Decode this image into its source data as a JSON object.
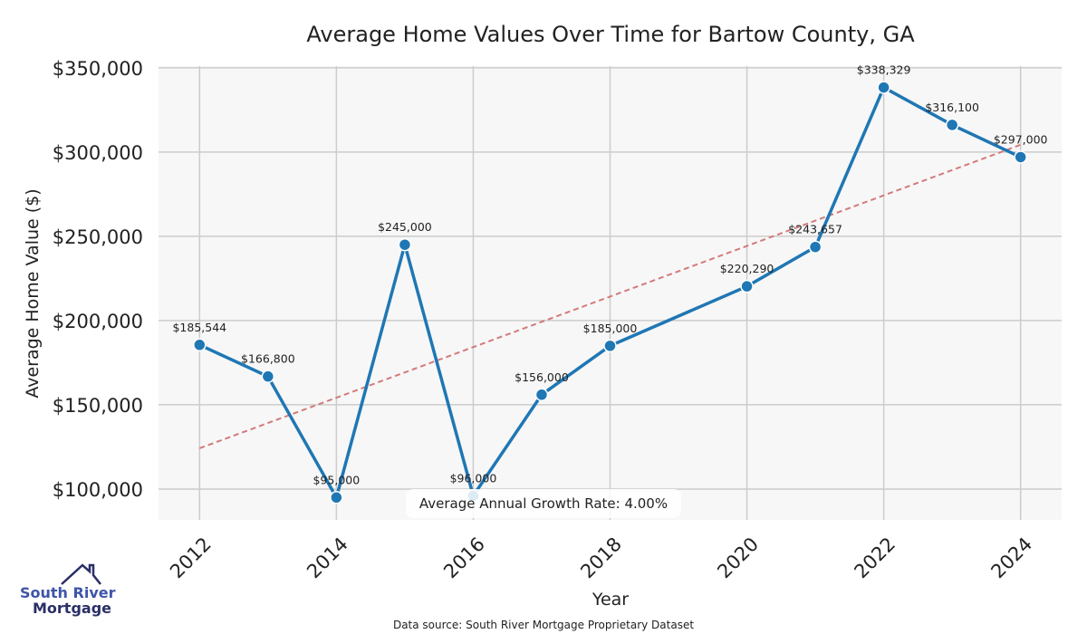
{
  "chart_data": {
    "type": "line",
    "title": "Average Home Values Over Time for Bartow County, GA",
    "xlabel": "Year",
    "ylabel": "Average Home Value ($)",
    "x": [
      2012,
      2013,
      2014,
      2015,
      2016,
      2017,
      2018,
      2020,
      2021,
      2022,
      2023,
      2024
    ],
    "values": [
      185544,
      166800,
      95000,
      245000,
      96000,
      156000,
      185000,
      220290,
      243657,
      338329,
      316100,
      297000
    ],
    "data_labels": [
      "$185,544",
      "$166,800",
      "$95,000",
      "$245,000",
      "$96,000",
      "$156,000",
      "$185,000",
      "$220,290",
      "$243,657",
      "$338,329",
      "$316,100",
      "$297,000"
    ],
    "xticks": [
      2012,
      2014,
      2016,
      2018,
      2020,
      2022,
      2024
    ],
    "xtick_labels": [
      "2012",
      "2014",
      "2016",
      "2018",
      "2020",
      "2022",
      "2024"
    ],
    "yticks": [
      100000,
      150000,
      200000,
      250000,
      300000,
      350000
    ],
    "ytick_labels": [
      "$100,000",
      "$150,000",
      "$200,000",
      "$250,000",
      "$300,000",
      "$350,000"
    ],
    "xlim": [
      2011.4,
      2024.6
    ],
    "ylim": [
      81700,
      351000
    ],
    "grid": true,
    "trend": {
      "x": [
        2012,
        2024
      ],
      "y": [
        124200,
        304300
      ],
      "color": "#d47a7a",
      "style": "dashed"
    },
    "annotation": "Average Annual Growth Rate: 4.00%",
    "line_color": "#1f77b4",
    "plot_bg": "#f7f7f7"
  },
  "logo": {
    "line1": "South River",
    "line2": "Mortgage"
  },
  "source": "Data source: South River Mortgage Proprietary Dataset"
}
